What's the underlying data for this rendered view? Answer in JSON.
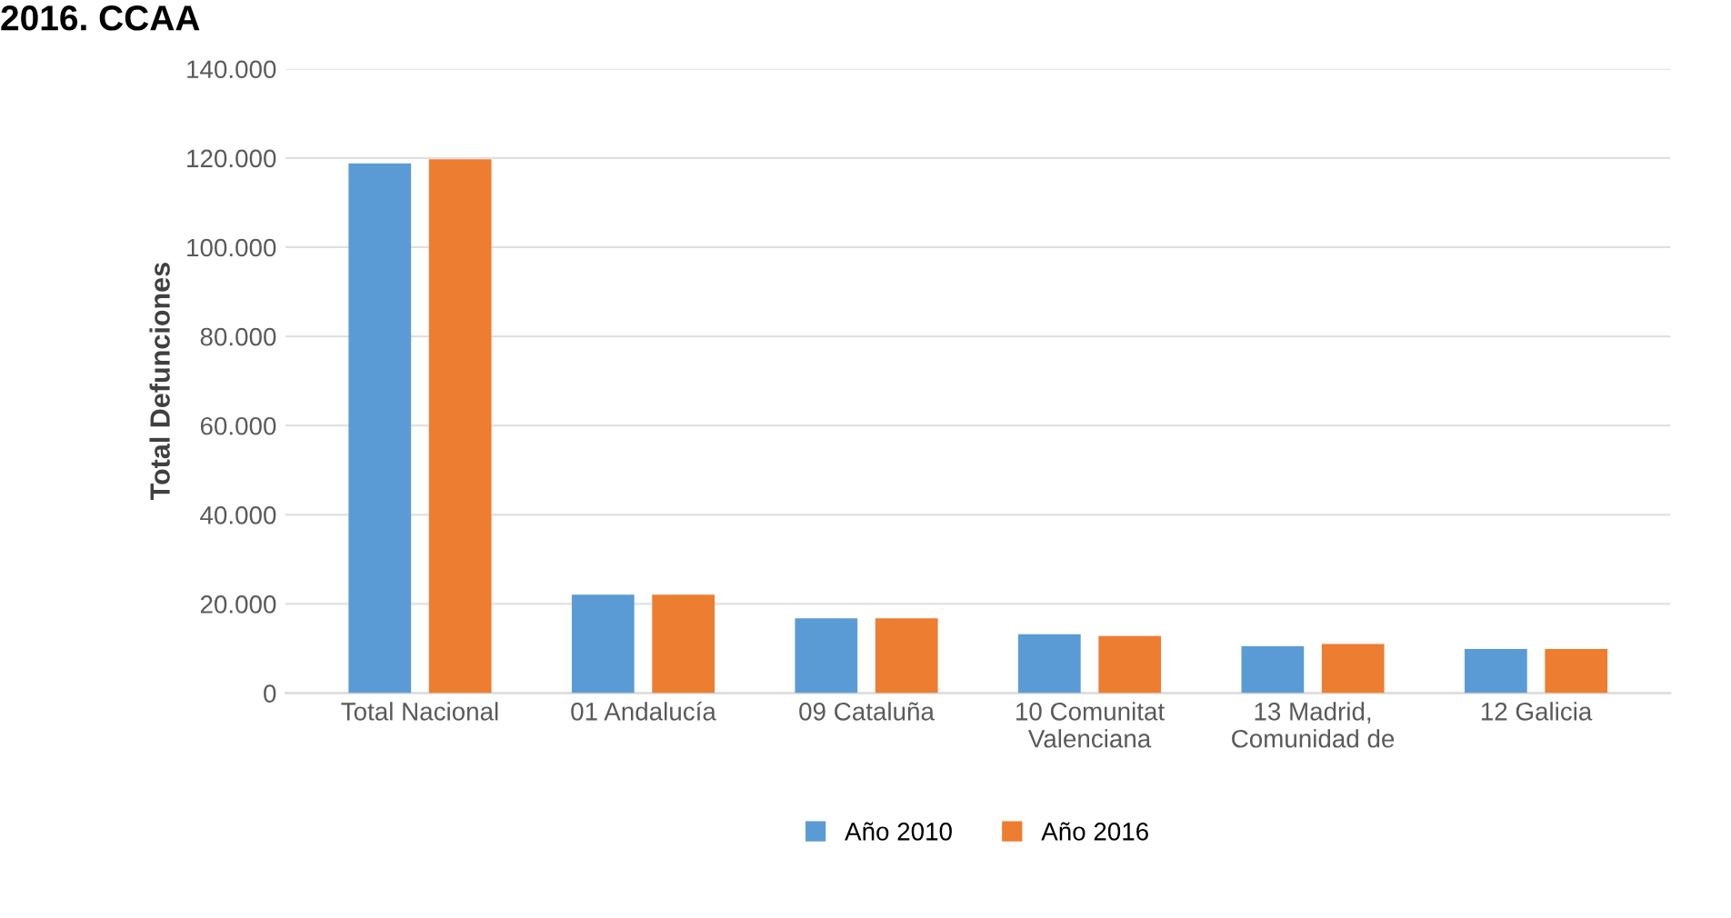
{
  "chart_data": {
    "type": "bar",
    "title": "2016. CCAA",
    "ylabel": "Total Defunciones",
    "categories": [
      "Total Nacional",
      "01 Andalucía",
      "09 Cataluña",
      "10 Comunitat\nValenciana",
      "13 Madrid,\nComunidad de",
      "12 Galicia"
    ],
    "series": [
      {
        "name": "Año 2010",
        "color": "#5b9bd5",
        "values": [
          118800,
          22100,
          16800,
          13200,
          10500,
          9900
        ]
      },
      {
        "name": "Año 2016",
        "color": "#ed7d31",
        "values": [
          119700,
          22100,
          16800,
          12800,
          11000,
          9900
        ]
      }
    ],
    "ylim": [
      0,
      140000
    ],
    "yticks": [
      {
        "value": 0,
        "label": "0"
      },
      {
        "value": 20000,
        "label": "20.000"
      },
      {
        "value": 40000,
        "label": "40.000"
      },
      {
        "value": 60000,
        "label": "60.000"
      },
      {
        "value": 80000,
        "label": "80.000"
      },
      {
        "value": 100000,
        "label": "100.000"
      },
      {
        "value": 120000,
        "label": "120.000"
      },
      {
        "value": 140000,
        "label": "140.000"
      }
    ],
    "grid": "y",
    "legend": "bottom"
  }
}
